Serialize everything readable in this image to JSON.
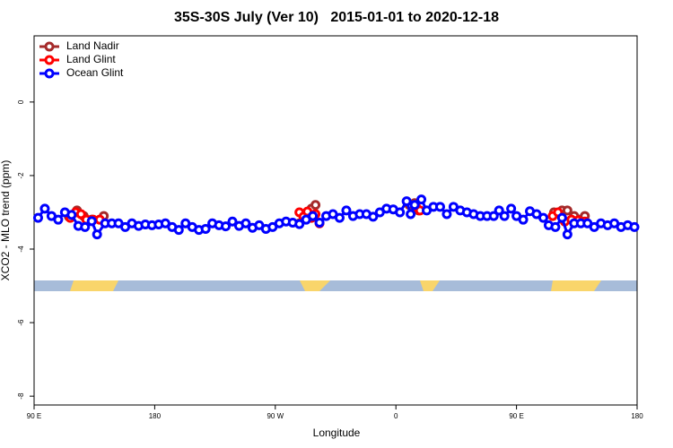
{
  "chart_data": {
    "type": "line",
    "title": "35S-30S July (Ver 10)   2015-01-01 to 2020-12-18",
    "x_label": "Longitude",
    "y_label": "XCO2 - MLO trend (ppm)",
    "xlim": [
      90,
      540
    ],
    "ylim": [
      -8.24,
      1.8
    ],
    "xticks": [
      {
        "value": 90,
        "label": "90 E"
      },
      180,
      {
        "value": 270,
        "label": "90 W"
      },
      {
        "value": 360,
        "label": "0"
      },
      {
        "value": 450,
        "label": "90 E"
      },
      {
        "value": 540,
        "label": "180"
      }
    ],
    "yticks": [
      -8,
      -6,
      -4,
      -2,
      0
    ],
    "legend": "top-left",
    "series": [
      {
        "name": "Land Nadir",
        "color": "#a52a2a",
        "x": [
          116,
          122,
          127,
          133,
          142,
          null,
          288,
          293,
          297,
          300,
          null,
          370,
          374,
          377,
          null,
          478,
          484,
          488,
          493,
          501
        ],
        "values": [
          -3.12,
          -2.95,
          -3.1,
          -3.2,
          -3.1,
          null,
          -3.3,
          -3.05,
          -2.9,
          -2.8,
          null,
          -2.8,
          -2.75,
          -2.95,
          null,
          -3.0,
          -2.95,
          -2.95,
          -3.1,
          -3.1
        ]
      },
      {
        "name": "Land Glint",
        "color": "#ff0000",
        "x": [
          117,
          121,
          125,
          129,
          134,
          139,
          null,
          288,
          291,
          294,
          297,
          300,
          303,
          null,
          375,
          378,
          null,
          477,
          481,
          486,
          491,
          496,
          501
        ],
        "values": [
          -3.15,
          -3.0,
          -3.05,
          -3.2,
          -3.2,
          -3.2,
          null,
          -3.0,
          -3.12,
          -2.98,
          -3.15,
          -3.05,
          -3.3,
          null,
          -2.85,
          -2.95,
          null,
          -3.1,
          -3.0,
          -3.25,
          -3.2,
          -3.22,
          -3.25
        ]
      },
      {
        "name": "Ocean Glint",
        "color": "#0000ff",
        "x": [
          93,
          98,
          103,
          108,
          113,
          118,
          123,
          128,
          133,
          137,
          143,
          148,
          153,
          158,
          163,
          168,
          173,
          178,
          183,
          188,
          193,
          198,
          203,
          208,
          213,
          218,
          223,
          228,
          233,
          238,
          243,
          248,
          253,
          258,
          263,
          268,
          273,
          278,
          283,
          288,
          293,
          298,
          303,
          308,
          313,
          318,
          323,
          328,
          333,
          338,
          343,
          348,
          353,
          358,
          363,
          368,
          371,
          374,
          379,
          383,
          388,
          393,
          398,
          403,
          408,
          413,
          418,
          423,
          428,
          433,
          437,
          441,
          446,
          450,
          455,
          460,
          465,
          470,
          474,
          479,
          484,
          488,
          493,
          498,
          503,
          508,
          513,
          518,
          523,
          528,
          533,
          538
        ],
        "values": [
          -3.15,
          -2.9,
          -3.1,
          -3.2,
          -3.0,
          -3.07,
          -3.37,
          -3.4,
          -3.24,
          -3.6,
          -3.3,
          -3.3,
          -3.3,
          -3.4,
          -3.3,
          -3.37,
          -3.33,
          -3.35,
          -3.33,
          -3.3,
          -3.4,
          -3.48,
          -3.3,
          -3.4,
          -3.48,
          -3.45,
          -3.3,
          -3.35,
          -3.38,
          -3.25,
          -3.37,
          -3.3,
          -3.42,
          -3.35,
          -3.45,
          -3.4,
          -3.3,
          -3.25,
          -3.28,
          -3.32,
          -3.2,
          -3.1,
          -3.28,
          -3.1,
          -3.05,
          -3.15,
          -2.95,
          -3.1,
          -3.05,
          -3.05,
          -3.12,
          -3.0,
          -2.9,
          -2.92,
          -3.0,
          -2.7,
          -3.05,
          -2.8,
          -2.65,
          -2.95,
          -2.85,
          -2.85,
          -3.05,
          -2.85,
          -2.95,
          -3.0,
          -3.05,
          -3.1,
          -3.1,
          -3.1,
          -2.95,
          -3.1,
          -2.9,
          -3.1,
          -3.2,
          -2.97,
          -3.05,
          -3.15,
          -3.35,
          -3.4,
          -3.15,
          -3.6,
          -3.3,
          -3.3,
          -3.3,
          -3.4,
          -3.3,
          -3.35,
          -3.3,
          -3.4,
          -3.35,
          -3.4
        ]
      }
    ]
  }
}
